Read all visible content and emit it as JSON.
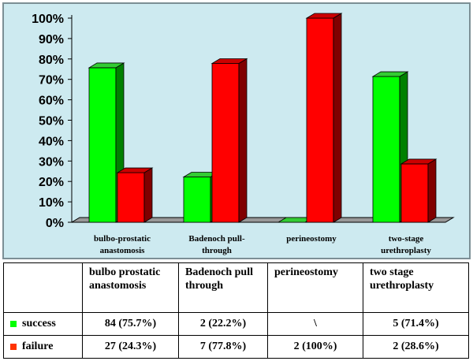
{
  "chart_data": {
    "type": "bar",
    "style": "3d-clustered",
    "categories": [
      "bulbo-prostatic anastomosis",
      "Badenoch pull-through",
      "perineostomy",
      "two-stage urethroplasty"
    ],
    "category_label_lines": [
      [
        "bulbo-prostatic",
        "anastomosis"
      ],
      [
        "Badenoch pull-",
        "through"
      ],
      [
        "perineostomy"
      ],
      [
        "two-stage",
        "urethroplasty"
      ]
    ],
    "series": [
      {
        "name": "success",
        "values": [
          75.7,
          22.2,
          0,
          71.4
        ],
        "color": "#00ff00",
        "side_color": "#008000",
        "top_color": "#33cc33"
      },
      {
        "name": "failure",
        "values": [
          24.3,
          77.8,
          100,
          28.6
        ],
        "color": "#ff0000",
        "side_color": "#800000",
        "top_color": "#cc0000"
      }
    ],
    "ylim": [
      0,
      100
    ],
    "yticks": [
      0,
      10,
      20,
      30,
      40,
      50,
      60,
      70,
      80,
      90,
      100
    ],
    "ytick_labels": [
      "0%",
      "10%",
      "20%",
      "30%",
      "40%",
      "50%",
      "60%",
      "70%",
      "80%",
      "90%",
      "100%"
    ],
    "grid": false,
    "background_color": "#cdeaf0",
    "floor_color": "#999999"
  },
  "table": {
    "headers": [
      {
        "line1": "bulbo prostatic",
        "line2": "anastomosis"
      },
      {
        "line1": "Badenoch pull",
        "line2": "through"
      },
      {
        "line1": "perineostomy",
        "line2": ""
      },
      {
        "line1": "two stage",
        "line2": "urethroplasty"
      }
    ],
    "rows": [
      {
        "label": "success",
        "color": "#00ff00",
        "cells": [
          "84 (75.7%)",
          "2 (22.2%)",
          "\\",
          "5 (71.4%)"
        ]
      },
      {
        "label": "failure",
        "color": "#ff3300",
        "cells": [
          "27 (24.3%)",
          "7 (77.8%)",
          "2 (100%)",
          "2 (28.6%)"
        ]
      }
    ]
  }
}
